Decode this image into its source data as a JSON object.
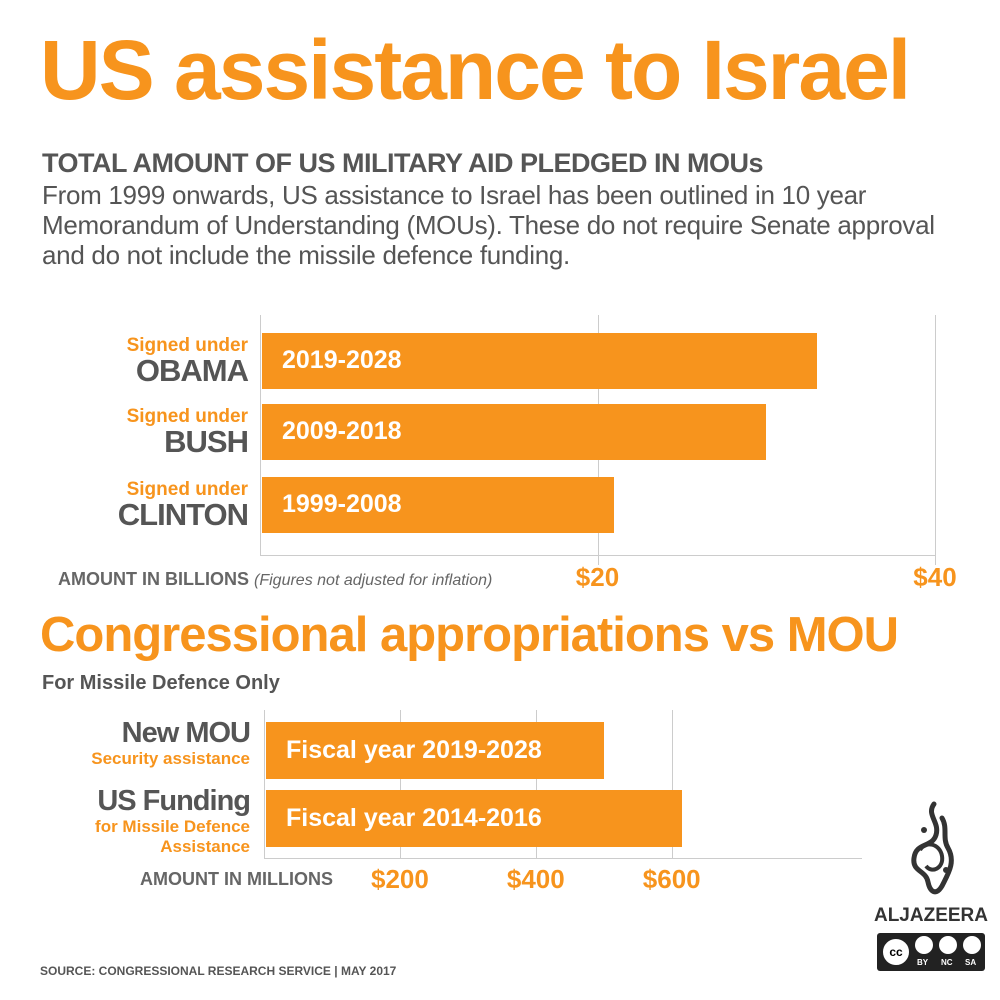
{
  "title": "US assistance to Israel",
  "subtitle": "TOTAL AMOUNT OF US MILITARY AID PLEDGED IN MOUs",
  "description": "From 1999 onwards, US assistance to Israel has been outlined in 10 year Memorandum of Understanding (MOUs). These do not require Senate approval and do not include the missile defence funding.",
  "colors": {
    "accent": "#f7941d",
    "text": "#555555",
    "grid": "#cccccc"
  },
  "chart_data": [
    {
      "type": "bar",
      "orientation": "horizontal",
      "categories": [
        {
          "small": "Signed under",
          "big": "OBAMA",
          "bar_label": "2019-2028"
        },
        {
          "small": "Signed under",
          "big": "BUSH",
          "bar_label": "2009-2018"
        },
        {
          "small": "Signed under",
          "big": "CLINTON",
          "bar_label": "1999-2008"
        }
      ],
      "values": [
        33,
        30,
        21
      ],
      "xlim": [
        0,
        40
      ],
      "ticks": [
        {
          "value": 20,
          "label": "$20"
        },
        {
          "value": 40,
          "label": "$40"
        }
      ],
      "xlabel": "AMOUNT IN BILLIONS",
      "xlabel_note": "(Figures not adjusted for inflation)",
      "grid": true
    },
    {
      "type": "bar",
      "orientation": "horizontal",
      "title": "Congressional appropriations vs MOU",
      "subtitle": "For Missile Defence Only",
      "categories": [
        {
          "big": "New MOU",
          "small": "Security assistance",
          "bar_label": "Fiscal year 2019-2028"
        },
        {
          "big": "US Funding",
          "small": "for Missile Defence Assistance",
          "bar_label": "Fiscal year 2014-2016"
        }
      ],
      "values": [
        500,
        615
      ],
      "xlim": [
        0,
        880
      ],
      "ticks": [
        {
          "value": 200,
          "label": "$200"
        },
        {
          "value": 400,
          "label": "$400"
        },
        {
          "value": 600,
          "label": "$600"
        }
      ],
      "xlabel": "AMOUNT IN MILLIONS",
      "grid": true
    }
  ],
  "logo": {
    "text": "ALJAZEERA",
    "license": [
      "BY",
      "NC",
      "SA"
    ]
  },
  "source": "SOURCE: CONGRESSIONAL RESEARCH SERVICE  |  MAY 2017"
}
